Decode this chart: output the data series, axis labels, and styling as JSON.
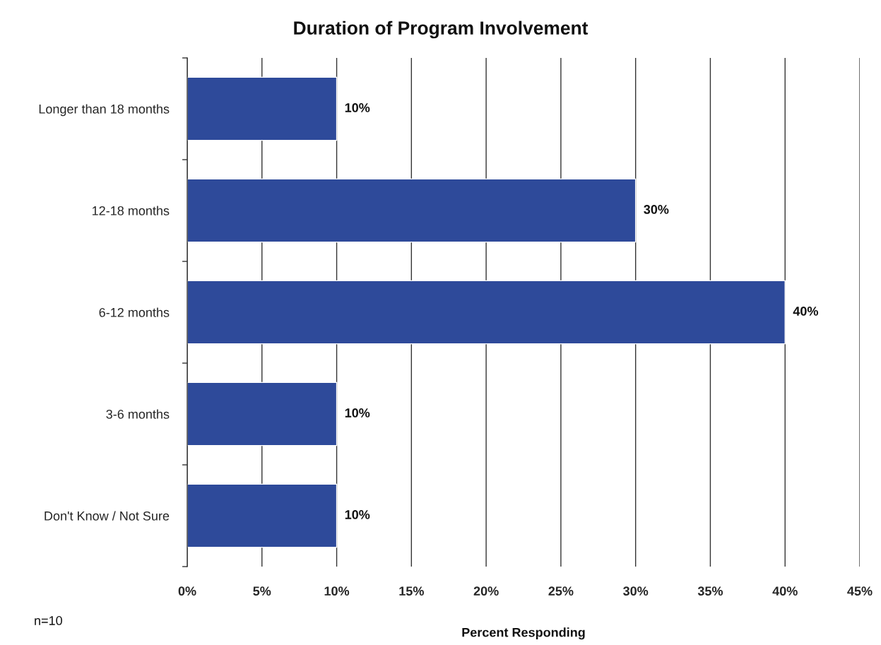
{
  "chart_data": {
    "type": "bar",
    "orientation": "horizontal",
    "title": "Duration of Program Involvement",
    "xlabel": "Percent Responding",
    "categories": [
      "Longer than 18 months",
      "12-18 months",
      "6-12 months",
      "3-6 months",
      "Don't Know / Not Sure"
    ],
    "values": [
      10,
      30,
      40,
      10,
      10
    ],
    "color": "#2e4a9a",
    "value_labels": [
      "10%",
      "30%",
      "40%",
      "10%",
      "10%"
    ],
    "xlim": [
      0,
      45
    ],
    "xticks": [
      {
        "value": 0,
        "label": "0%"
      },
      {
        "value": 5,
        "label": "5%"
      },
      {
        "value": 10,
        "label": "10%"
      },
      {
        "value": 15,
        "label": "15%"
      },
      {
        "value": 20,
        "label": "20%"
      },
      {
        "value": 25,
        "label": "25%"
      },
      {
        "value": 30,
        "label": "30%"
      },
      {
        "value": 35,
        "label": "35%"
      },
      {
        "value": 40,
        "label": "40%"
      },
      {
        "value": 45,
        "label": "45%"
      }
    ],
    "grid": "x",
    "legend": false,
    "annotations": [
      "n=10"
    ]
  }
}
